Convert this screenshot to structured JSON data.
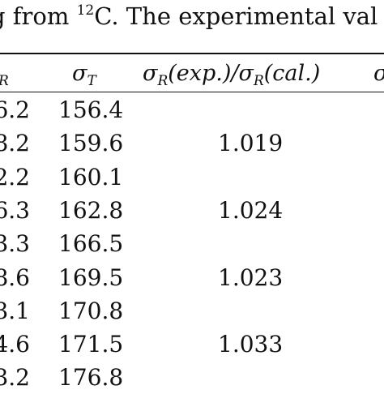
{
  "caption": {
    "prefix": "g from ",
    "superscript": "12",
    "suffix": "C. The experimental val"
  },
  "header": {
    "col1": {
      "symbol": "",
      "subscript": "R"
    },
    "col2": {
      "symbol": "σ",
      "subscript": "T"
    },
    "col3": {
      "s1": "σ",
      "sub1": "R",
      "p1": "(exp.)/",
      "s2": "σ",
      "sub2": "R",
      "p2": "(cal.)"
    },
    "col4": {
      "symbol": "σ"
    }
  },
  "rows": [
    {
      "sigma_r": "6.2",
      "sigma_t": "156.4",
      "ratio": ""
    },
    {
      "sigma_r": "8.2",
      "sigma_t": "159.6",
      "ratio": "1.019"
    },
    {
      "sigma_r": "2.2",
      "sigma_t": "160.1",
      "ratio": ""
    },
    {
      "sigma_r": "6.3",
      "sigma_t": "162.8",
      "ratio": "1.024"
    },
    {
      "sigma_r": "3.3",
      "sigma_t": "166.5",
      "ratio": ""
    },
    {
      "sigma_r": "8.6",
      "sigma_t": "169.5",
      "ratio": "1.023"
    },
    {
      "sigma_r": "3.1",
      "sigma_t": "170.8",
      "ratio": ""
    },
    {
      "sigma_r": "4.6",
      "sigma_t": "171.5",
      "ratio": "1.033"
    },
    {
      "sigma_r": "3.2",
      "sigma_t": "176.8",
      "ratio": ""
    }
  ]
}
